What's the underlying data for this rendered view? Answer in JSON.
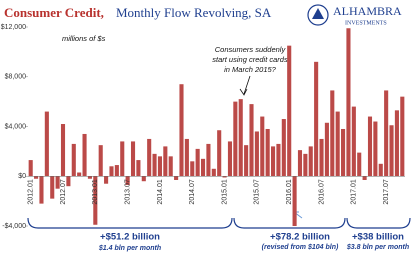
{
  "chart_data": {
    "type": "bar",
    "title_part1": "Consumer Credit,",
    "title_part2": "Monthly Flow Revolving, SA",
    "logo": {
      "name": "ALHAMBRA",
      "sub": "INVESTMENTS"
    },
    "subtitle": "millions of $s",
    "annotation": [
      "Consumers suddenly",
      "start using credit cards",
      "in March 2015?"
    ],
    "periods": [
      {
        "total": "+$51.2 billion",
        "note": "$1.4 bln per month"
      },
      {
        "total": "+$78.2 billion",
        "note": "(revised from $104 bln)"
      },
      {
        "total": "+$38 billion",
        "note": "$3.8 bln per month"
      }
    ],
    "color": "#bb4a48",
    "ylim": [
      -4000,
      12000
    ],
    "yticks": [
      {
        "value": -4000,
        "label": "-$4,000"
      },
      {
        "value": 0,
        "label": "$0"
      },
      {
        "value": 4000,
        "label": "$4,000"
      },
      {
        "value": 8000,
        "label": "$8,000"
      },
      {
        "value": 12000,
        "label": "$12,000"
      }
    ],
    "categories": [
      "2012.01",
      null,
      null,
      null,
      null,
      null,
      "2012.07",
      null,
      null,
      null,
      null,
      null,
      "2013.01",
      null,
      null,
      null,
      null,
      null,
      "2013.07",
      null,
      null,
      null,
      null,
      null,
      "2014.01",
      null,
      null,
      null,
      null,
      null,
      "2014.07",
      null,
      null,
      null,
      null,
      null,
      "2015.01",
      null,
      null,
      null,
      null,
      null,
      "2015.07",
      null,
      null,
      null,
      null,
      null,
      "2016.01",
      null,
      null,
      null,
      null,
      null,
      "2016.07",
      null,
      null,
      null,
      null,
      null,
      "2017.01",
      null,
      null,
      null,
      null,
      null,
      "2017.07",
      null,
      null,
      null
    ],
    "values": [
      1300,
      -200,
      -2200,
      5200,
      -1800,
      -1000,
      4200,
      -800,
      2600,
      300,
      3400,
      -200,
      -3900,
      2500,
      -600,
      800,
      900,
      2800,
      -700,
      2800,
      1300,
      -400,
      3000,
      1800,
      1600,
      2400,
      1600,
      -300,
      7400,
      3000,
      1200,
      2200,
      1400,
      2600,
      600,
      3700,
      -100,
      2800,
      6000,
      6200,
      2500,
      5800,
      3600,
      4800,
      3800,
      2400,
      2600,
      4600,
      10500,
      -4000,
      2100,
      1800,
      2400,
      9200,
      3000,
      4300,
      6900,
      5200,
      3800,
      11900,
      5600,
      1900,
      -300,
      4800,
      4400,
      1000,
      6900,
      4100,
      5300,
      6400
    ]
  }
}
